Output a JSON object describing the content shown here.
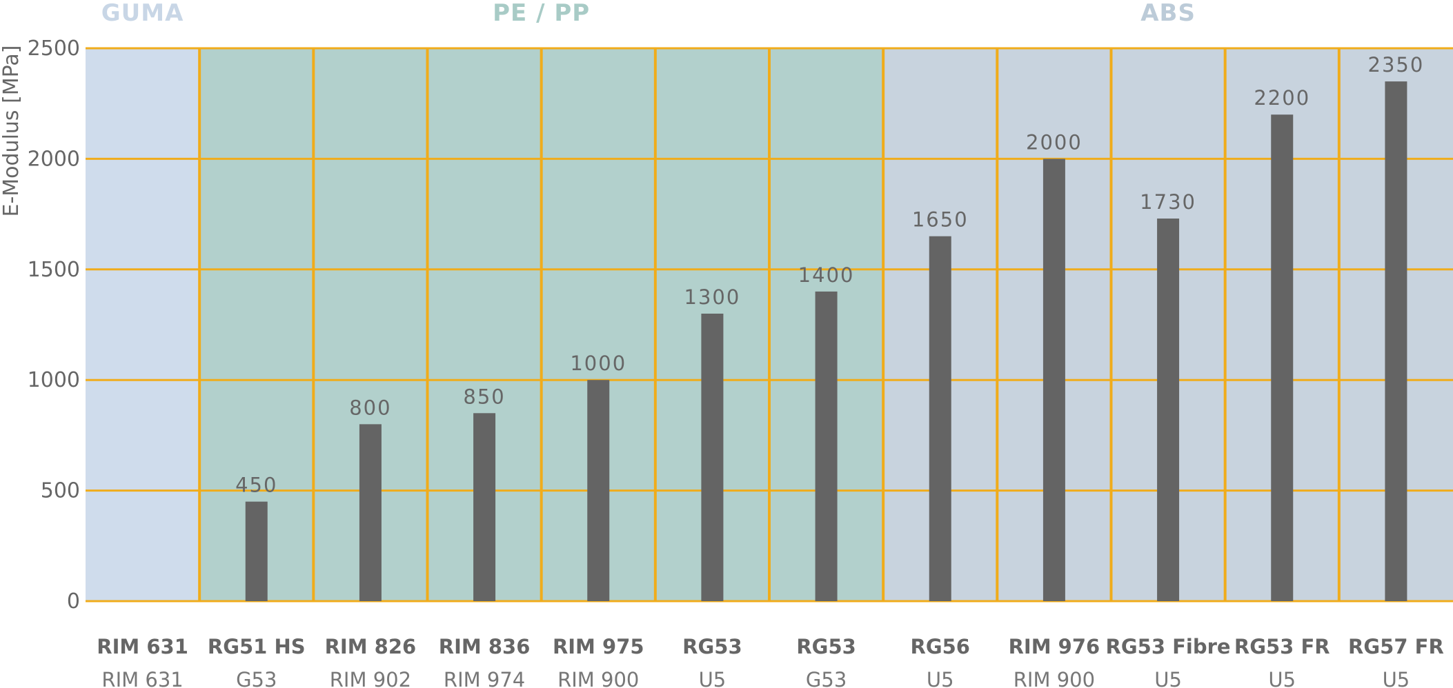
{
  "chart_data": {
    "type": "bar",
    "ylabel": "E-Modulus [MPa]",
    "ylim": [
      0,
      2500
    ],
    "yticks": [
      0,
      500,
      1000,
      1500,
      2000,
      2500
    ],
    "grid": true,
    "categories": [
      {
        "name": "RIM 631",
        "sub": "RIM 631"
      },
      {
        "name": "RG51 HS",
        "sub": "G53"
      },
      {
        "name": "RIM 826",
        "sub": "RIM 902"
      },
      {
        "name": "RIM 836",
        "sub": "RIM 974"
      },
      {
        "name": "RIM 975",
        "sub": "RIM 900"
      },
      {
        "name": "RG53",
        "sub": "U5"
      },
      {
        "name": "RG53",
        "sub": "G53"
      },
      {
        "name": "RG56",
        "sub": "U5"
      },
      {
        "name": "RIM 976",
        "sub": "RIM 900"
      },
      {
        "name": "RG53 Fibre",
        "sub": "U5"
      },
      {
        "name": "RG53 FR",
        "sub": "U5"
      },
      {
        "name": "RG57 FR",
        "sub": "U5"
      }
    ],
    "values": [
      null,
      450,
      800,
      850,
      1000,
      1300,
      1400,
      1650,
      2000,
      1730,
      2200,
      2350
    ],
    "groups": [
      {
        "label": "GUMA",
        "start": 0,
        "end": 0,
        "bg": "#cfdcec",
        "text_color": "#c8d6e6"
      },
      {
        "label": "PE / PP",
        "start": 1,
        "end": 6,
        "bg": "#b2d0cc",
        "text_color": "#a8cbc6"
      },
      {
        "label": "ABS",
        "start": 7,
        "end": 11,
        "bg": "#c8d3de",
        "text_color": "#bccbd8"
      }
    ],
    "colors": {
      "bar": "#646464",
      "grid": "#f0ac1b",
      "text": "#666666"
    }
  }
}
